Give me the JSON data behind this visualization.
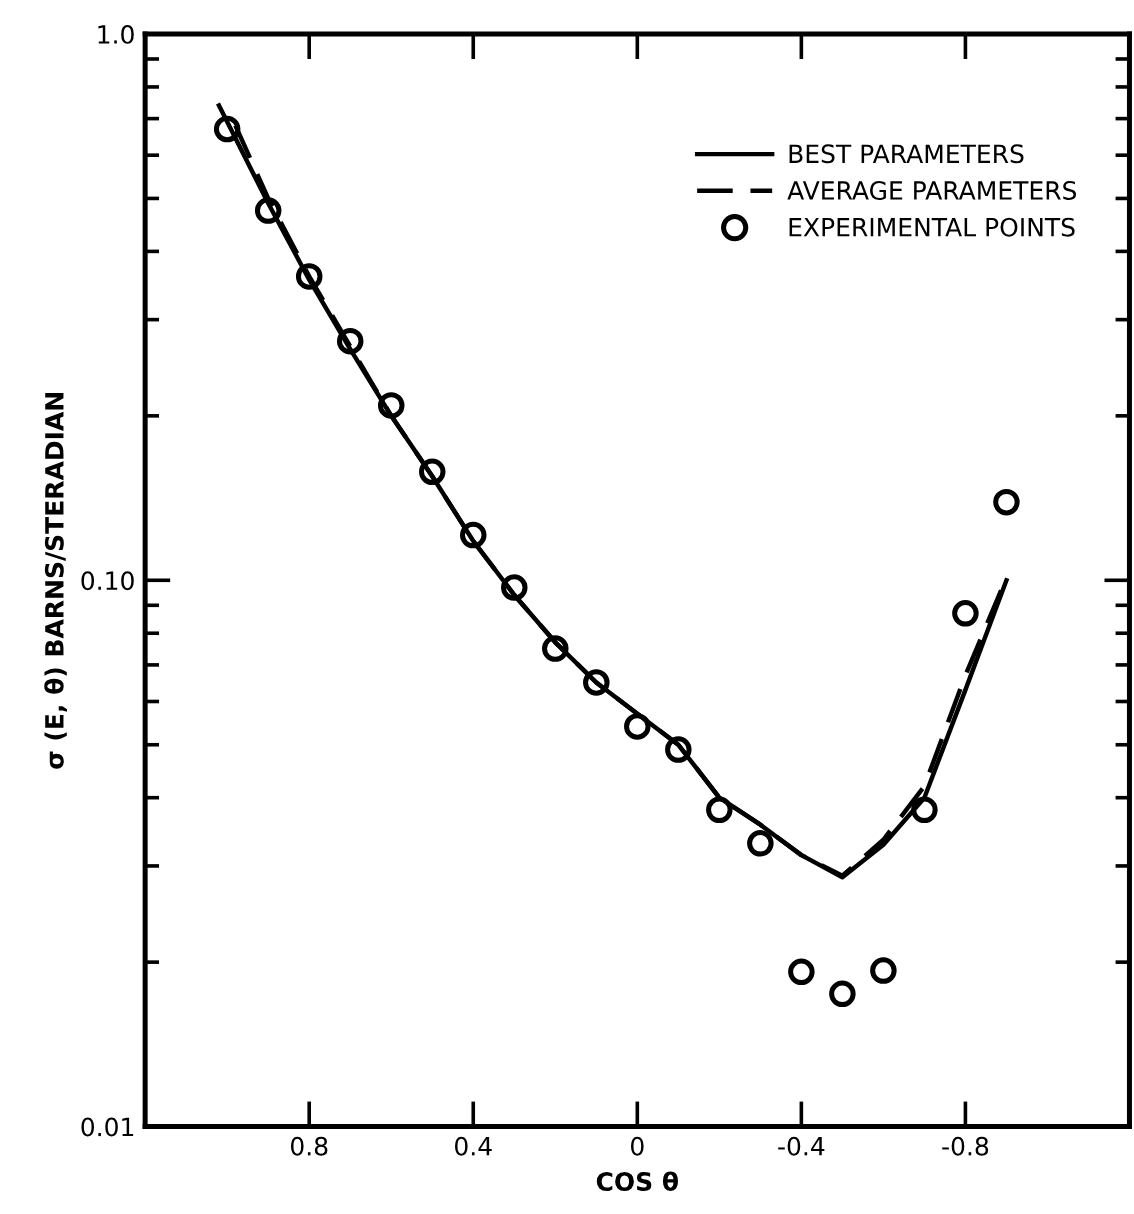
{
  "chart_data": {
    "type": "line",
    "xlabel": "COS θ",
    "ylabel": "σ (E, θ) BARNS/STERADIAN",
    "log": "y",
    "xlim": [
      1.2,
      -1.2
    ],
    "ylim": [
      0.01,
      1.0
    ],
    "xticks": [
      0.8,
      0.4,
      0,
      -0.4,
      -0.8
    ],
    "yticks": [
      {
        "value": 0.01,
        "label": "0.01"
      },
      {
        "value": 0.1,
        "label": "0.10"
      },
      {
        "value": 1.0,
        "label": "1.0"
      }
    ],
    "grid": false,
    "legend": "top right",
    "series": [
      {
        "name": "BEST PARAMETERS",
        "color": "#000000",
        "line_style": "solid",
        "marker": "none",
        "x": [
          1.02,
          0.9,
          0.8,
          0.7,
          0.6,
          0.5,
          0.4,
          0.3,
          0.2,
          0.1,
          0,
          -0.1,
          -0.2,
          -0.3,
          -0.4,
          -0.5,
          -0.6,
          -0.7,
          -0.8,
          -0.9
        ],
        "values": [
          0.74,
          0.49,
          0.355,
          0.265,
          0.2,
          0.155,
          0.118,
          0.094,
          0.077,
          0.065,
          0.057,
          0.05,
          0.04,
          0.0357,
          0.0314,
          0.0286,
          0.0328,
          0.04,
          0.063,
          0.1
        ]
      },
      {
        "name": "AVERAGE PARAMETERS",
        "color": "#000000",
        "line_style": "dashed",
        "marker": "none",
        "x": [
          0.98,
          0.9,
          0.8,
          0.7,
          0.6,
          0.5,
          0.4,
          0.3,
          0.2,
          0.1,
          0,
          -0.1,
          -0.2,
          -0.3,
          -0.4,
          -0.5,
          -0.6,
          -0.7,
          -0.8,
          -0.89
        ],
        "values": [
          0.68,
          0.5,
          0.36,
          0.268,
          0.2,
          0.155,
          0.118,
          0.094,
          0.077,
          0.065,
          0.057,
          0.05,
          0.04,
          0.0357,
          0.0314,
          0.0288,
          0.0335,
          0.042,
          0.067,
          0.097
        ]
      },
      {
        "name": "EXPERIMENTAL POINTS",
        "type": "scatter",
        "color": "#000000",
        "marker": "circle",
        "x": [
          1.0,
          0.9,
          0.8,
          0.7,
          0.6,
          0.5,
          0.4,
          0.3,
          0.2,
          0.1,
          0,
          -0.1,
          -0.2,
          -0.3,
          -0.4,
          -0.5,
          -0.6,
          -0.7,
          -0.8,
          -0.9
        ],
        "values": [
          0.67,
          0.475,
          0.36,
          0.274,
          0.209,
          0.158,
          0.121,
          0.097,
          0.075,
          0.065,
          0.054,
          0.049,
          0.038,
          0.033,
          0.0192,
          0.0175,
          0.0193,
          0.038,
          0.087,
          0.139
        ]
      }
    ]
  }
}
